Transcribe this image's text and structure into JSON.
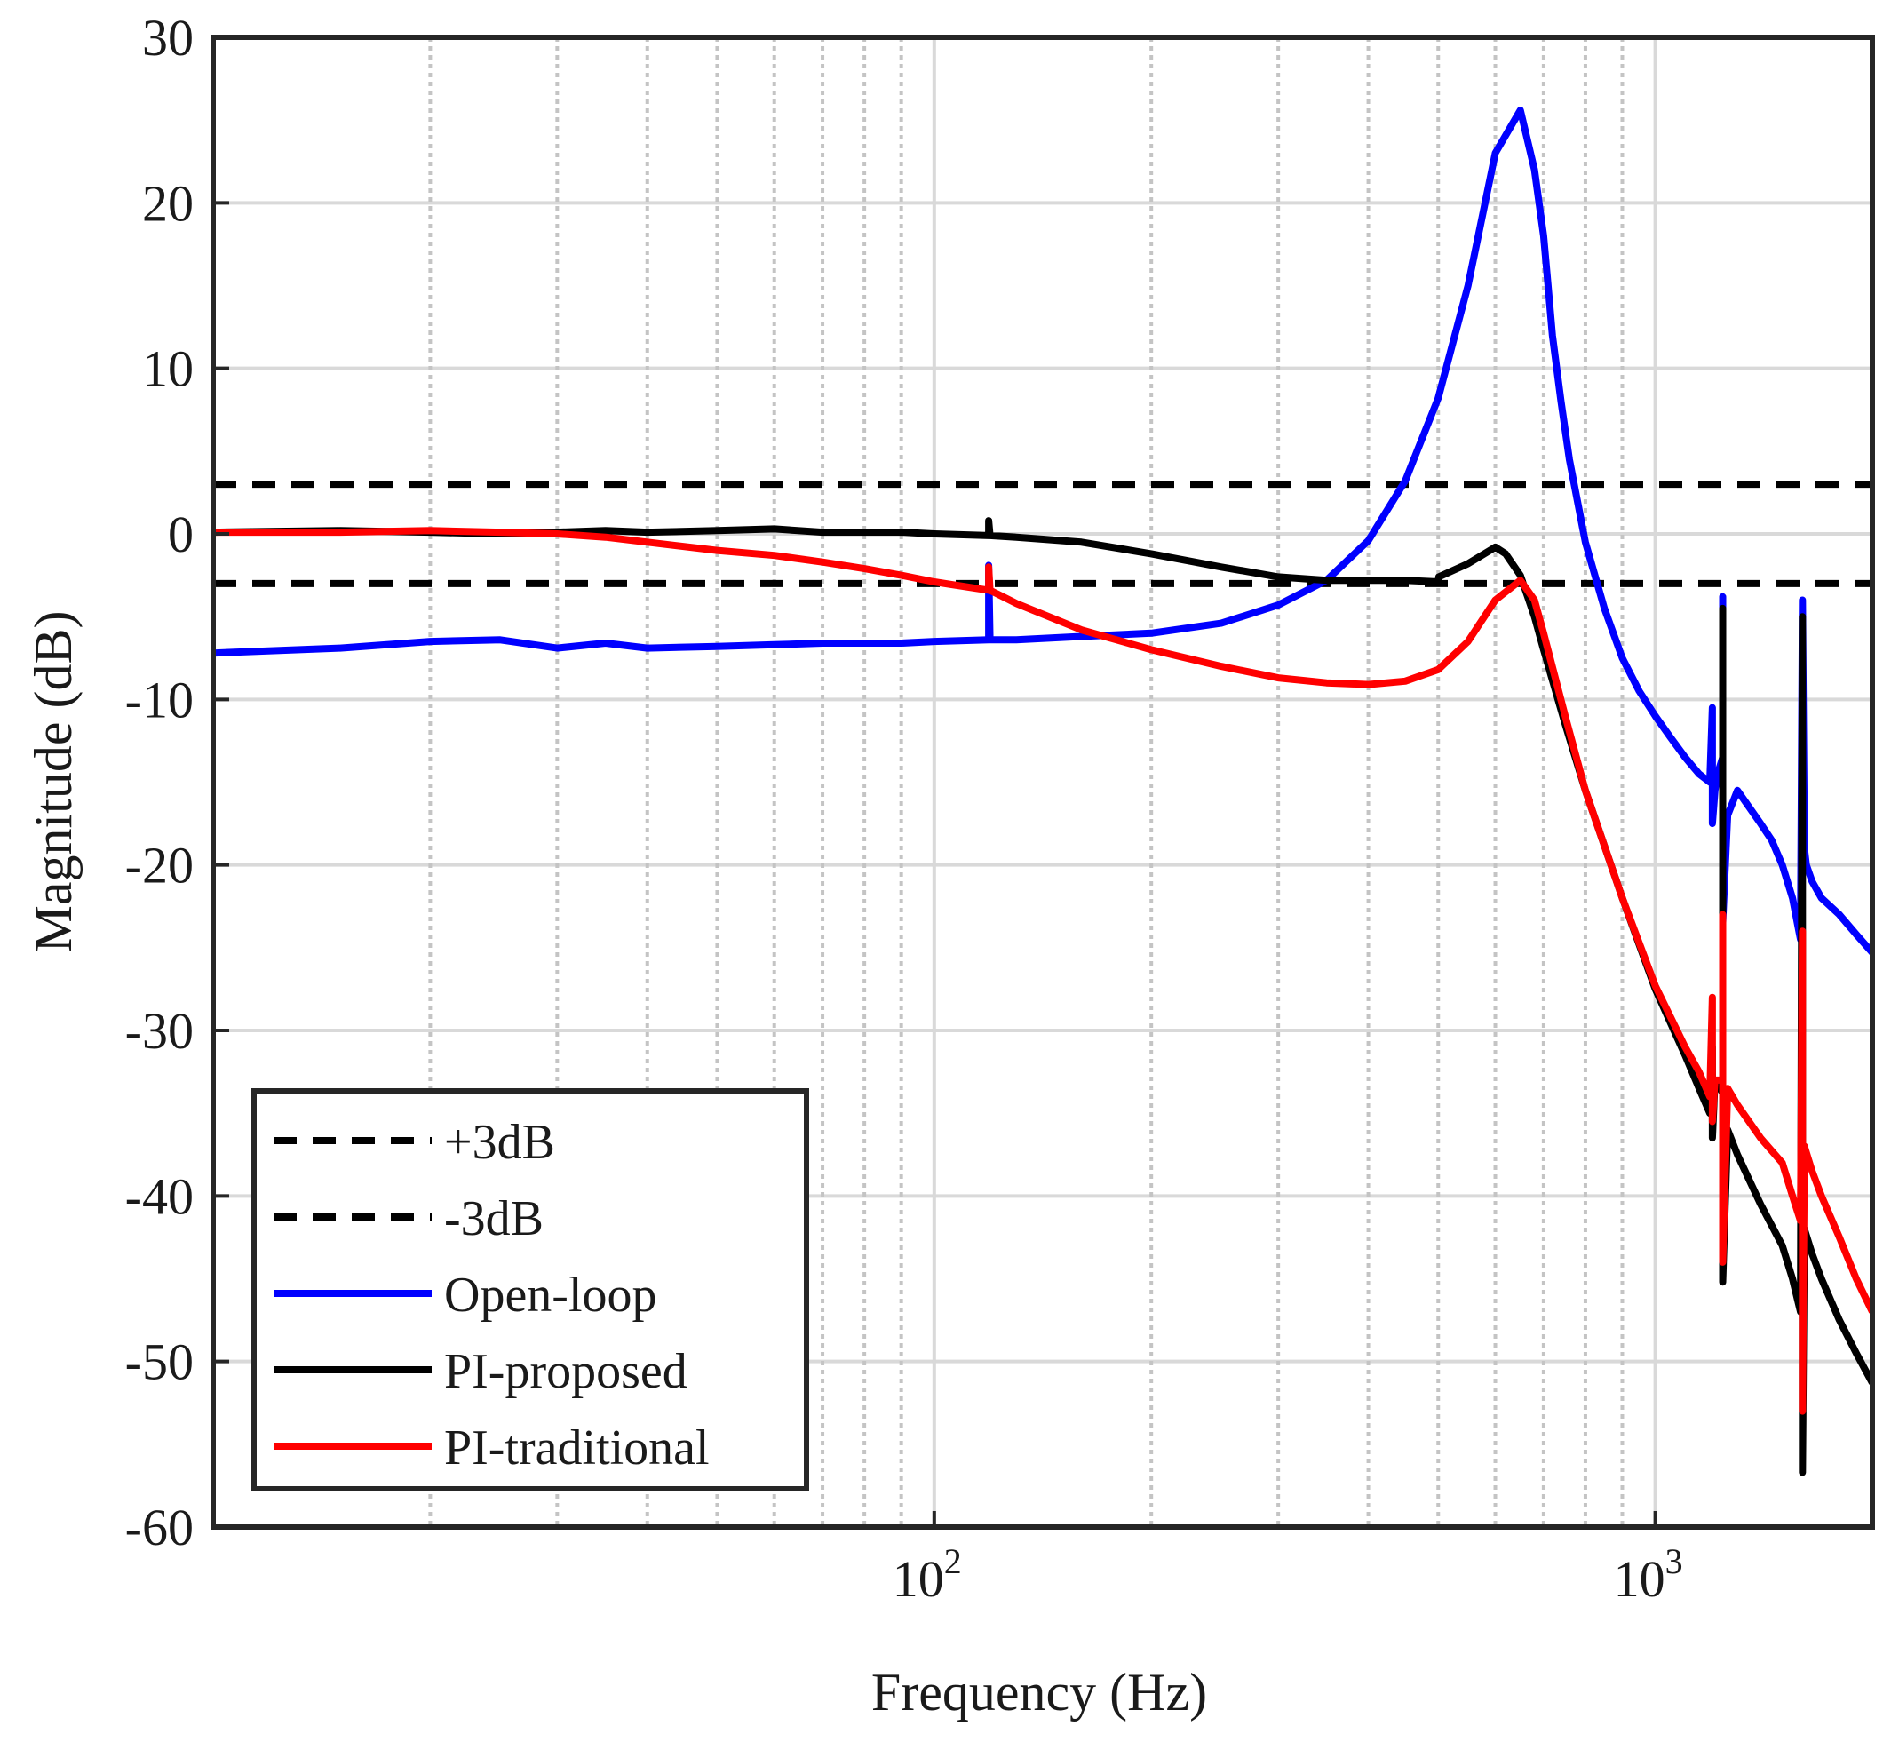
{
  "chart_data": {
    "type": "line",
    "xscale": "log",
    "xlabel": "Frequency (Hz)",
    "ylabel": "Magnitude (dB)",
    "xlim": [
      10,
      2000
    ],
    "ylim": [
      -60,
      30
    ],
    "grid": true,
    "legend_position": "bottom-left",
    "yticks": [
      30,
      20,
      10,
      0,
      -10,
      -20,
      -30,
      -40,
      -50,
      -60
    ],
    "ytick_labels": [
      "30",
      "20",
      "10",
      "0",
      "-10",
      "-20",
      "-30",
      "-40",
      "-50",
      "-60"
    ],
    "xticks": [
      {
        "value": 100,
        "base": "10",
        "exp": "2"
      },
      {
        "value": 1000,
        "base": "10",
        "exp": "3"
      }
    ],
    "series": [
      {
        "name": "+3dB",
        "color": "#000000",
        "dashed": true,
        "x": [
          10,
          2000
        ],
        "y": [
          3,
          3
        ]
      },
      {
        "name": "-3dB",
        "color": "#000000",
        "dashed": true,
        "x": [
          10,
          2000
        ],
        "y": [
          -3,
          -3
        ]
      },
      {
        "name": "Open-loop",
        "color": "#0000ff",
        "dashed": false,
        "x": [
          10,
          15,
          20,
          25,
          30,
          35,
          40,
          50,
          60,
          70,
          80,
          90,
          100,
          119,
          119,
          119.5,
          130,
          160,
          200,
          250,
          300,
          350,
          400,
          450,
          500,
          550,
          600,
          650,
          680,
          700,
          710,
          720,
          740,
          760,
          800,
          850,
          900,
          950,
          1000,
          1050,
          1100,
          1150,
          1190,
          1200,
          1200,
          1210,
          1220,
          1240,
          1240,
          1240,
          1260,
          1300,
          1400,
          1450,
          1500,
          1550,
          1590,
          1600,
          1610,
          1620,
          1650,
          1700,
          1800,
          1900,
          2000
        ],
        "y": [
          -7.2,
          -6.9,
          -6.5,
          -6.4,
          -6.9,
          -6.6,
          -6.9,
          -6.8,
          -6.7,
          -6.6,
          -6.6,
          -6.6,
          -6.5,
          -6.4,
          -1.9,
          -6.4,
          -6.4,
          -6.2,
          -6.0,
          -5.4,
          -4.3,
          -2.8,
          -0.4,
          3.2,
          8.2,
          15.0,
          23.0,
          25.6,
          22.0,
          18.0,
          15.0,
          12.0,
          8.0,
          4.5,
          -0.5,
          -4.5,
          -7.5,
          -9.5,
          -11.0,
          -12.3,
          -13.5,
          -14.5,
          -15.0,
          -10.5,
          -17.5,
          -15.5,
          -14.5,
          -13.5,
          -3.8,
          -23.5,
          -17.0,
          -15.5,
          -17.5,
          -18.5,
          -20.0,
          -22.0,
          -24.5,
          -4.0,
          -19.0,
          -20.0,
          -21.0,
          -22.0,
          -23.0,
          -24.2,
          -25.3
        ]
      },
      {
        "name": "PI-proposed",
        "color": "#000000",
        "dashed": false,
        "x": [
          10,
          15,
          20,
          25,
          30,
          35,
          40,
          50,
          60,
          70,
          80,
          90,
          100,
          119,
          119,
          119.5,
          130,
          160,
          200,
          250,
          300,
          350,
          400,
          450,
          500,
          501,
          550,
          600,
          620,
          650,
          680,
          700,
          750,
          800,
          900,
          1000,
          1100,
          1150,
          1190,
          1200,
          1200,
          1210,
          1230,
          1240,
          1240,
          1240,
          1260,
          1300,
          1400,
          1500,
          1550,
          1590,
          1600,
          1600,
          1610,
          1650,
          1700,
          1800,
          1900,
          2000
        ],
        "y": [
          0.1,
          0.2,
          0.1,
          0.0,
          0.1,
          0.2,
          0.1,
          0.2,
          0.3,
          0.1,
          0.1,
          0.1,
          0.0,
          -0.1,
          0.8,
          -0.1,
          -0.2,
          -0.5,
          -1.2,
          -2.0,
          -2.6,
          -2.8,
          -2.8,
          -2.8,
          -2.9,
          -2.6,
          -1.8,
          -0.8,
          -1.2,
          -2.5,
          -5.0,
          -7.0,
          -11.5,
          -15.5,
          -22.0,
          -27.5,
          -31.5,
          -33.5,
          -35.0,
          -31.0,
          -36.5,
          -33.0,
          -33.5,
          -33.8,
          -4.5,
          -45.2,
          -36.0,
          -37.5,
          -40.5,
          -43.0,
          -45.0,
          -47.0,
          -5.0,
          -56.7,
          -42.0,
          -43.5,
          -45.0,
          -47.5,
          -49.5,
          -51.3
        ]
      },
      {
        "name": "PI-traditional",
        "color": "#ff0000",
        "dashed": false,
        "x": [
          10,
          15,
          20,
          25,
          30,
          35,
          40,
          50,
          60,
          70,
          80,
          90,
          100,
          119,
          119,
          119.5,
          130,
          160,
          200,
          250,
          300,
          350,
          400,
          450,
          500,
          550,
          600,
          650,
          680,
          700,
          750,
          800,
          900,
          1000,
          1100,
          1150,
          1190,
          1200,
          1200,
          1210,
          1230,
          1240,
          1240,
          1240,
          1260,
          1300,
          1400,
          1500,
          1550,
          1590,
          1600,
          1600,
          1610,
          1650,
          1700,
          1800,
          1900,
          2000
        ],
        "y": [
          0.1,
          0.1,
          0.2,
          0.1,
          0.0,
          -0.2,
          -0.5,
          -1.0,
          -1.3,
          -1.7,
          -2.1,
          -2.5,
          -2.9,
          -3.4,
          -2.0,
          -3.4,
          -4.2,
          -5.8,
          -7.0,
          -8.0,
          -8.7,
          -9.0,
          -9.1,
          -8.9,
          -8.2,
          -6.5,
          -4.0,
          -2.8,
          -4.0,
          -6.0,
          -11.0,
          -15.5,
          -22.0,
          -27.3,
          -31.0,
          -32.5,
          -34.0,
          -28.0,
          -35.5,
          -33.0,
          -33.0,
          -33.0,
          -23.0,
          -44.0,
          -33.5,
          -34.5,
          -36.5,
          -38.0,
          -40.0,
          -41.5,
          -24.0,
          -53.0,
          -37.0,
          -38.5,
          -40.0,
          -42.5,
          -45.0,
          -47.0
        ]
      }
    ]
  }
}
